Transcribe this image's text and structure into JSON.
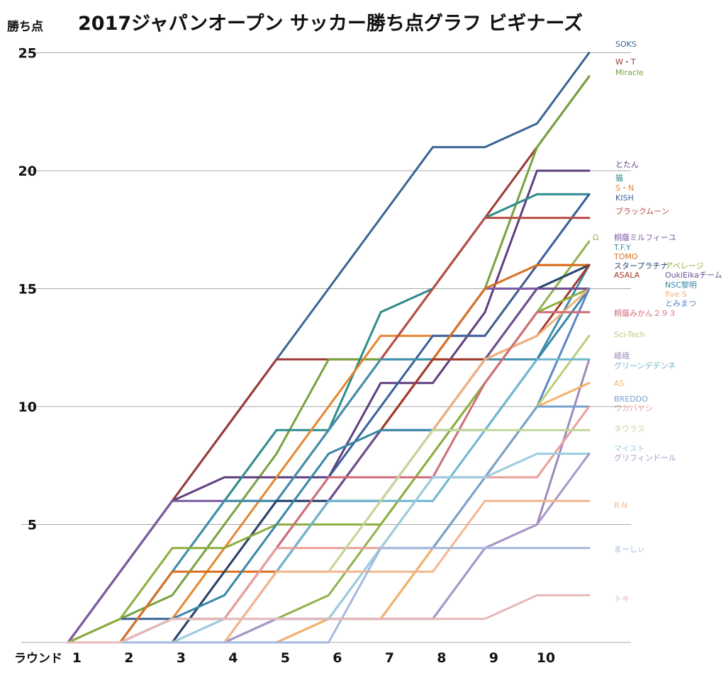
{
  "chart_data": {
    "type": "line",
    "title": "2017ジャパンオープン サッカー勝ち点グラフ ビギナーズ",
    "ylabel": "勝ち点",
    "xlabel": "ラウンド",
    "x": [
      1,
      2,
      3,
      4,
      5,
      6,
      7,
      8,
      9,
      10
    ],
    "ylim": [
      0,
      25
    ],
    "yticks": [
      5,
      10,
      15,
      20,
      25
    ],
    "grid": true,
    "legend": "right (labels at line ends)",
    "series": [
      {
        "name": "SOKS",
        "color": "#3b6494",
        "values": [
          3,
          6,
          9,
          12,
          15,
          18,
          21,
          21,
          22,
          25
        ]
      },
      {
        "name": "W・T",
        "color": "#9a3a34",
        "values": [
          3,
          6,
          9,
          12,
          12,
          12,
          15,
          18,
          21,
          24
        ]
      },
      {
        "name": "Miracle",
        "color": "#77a23e",
        "values": [
          1,
          2,
          5,
          8,
          12,
          12,
          12,
          15,
          21,
          24
        ]
      },
      {
        "name": "とたん",
        "color": "#5e3f7f",
        "values": [
          3,
          6,
          7,
          7,
          7,
          11,
          11,
          14,
          20,
          20
        ]
      },
      {
        "name": "猫",
        "color": "#2e8a8c",
        "values": [
          0,
          3,
          6,
          9,
          9,
          14,
          15,
          18,
          19,
          19
        ]
      },
      {
        "name": "S・N",
        "color": "#e4862f",
        "values": [
          0,
          1,
          4,
          7,
          10,
          13,
          13,
          13,
          16,
          16
        ]
      },
      {
        "name": "KISH",
        "color": "#3b5f99",
        "values": [
          1,
          1,
          1,
          4,
          7,
          10,
          13,
          13,
          16,
          19
        ]
      },
      {
        "name": "ブラックムーン",
        "color": "#b84c46",
        "values": [
          0,
          0,
          3,
          6,
          9,
          12,
          15,
          18,
          18,
          18
        ]
      },
      {
        "name": "Ω",
        "color": "#92b24d",
        "values": [
          0,
          0,
          0,
          1,
          2,
          5,
          8,
          11,
          14,
          17
        ]
      },
      {
        "name": "桐蔭ミルフィーユ",
        "color": "#7c5aa2",
        "values": [
          3,
          6,
          6,
          6,
          6,
          9,
          12,
          15,
          15,
          16
        ]
      },
      {
        "name": "T.F.Y",
        "color": "#3f8fab",
        "values": [
          0,
          3,
          6,
          6,
          9,
          12,
          12,
          12,
          12,
          16
        ]
      },
      {
        "name": "TOMO",
        "color": "#d96f1f",
        "values": [
          0,
          3,
          3,
          3,
          6,
          9,
          12,
          15,
          16,
          16
        ]
      },
      {
        "name": "スタープラチナ",
        "color": "#27466f",
        "values": [
          0,
          0,
          3,
          6,
          6,
          6,
          9,
          12,
          15,
          16
        ]
      },
      {
        "name": "ASALA",
        "color": "#a23a2a",
        "values": [
          0,
          0,
          0,
          3,
          6,
          9,
          12,
          12,
          13,
          16
        ]
      },
      {
        "name": "アベレージ",
        "color": "#8dae3e",
        "values": [
          1,
          4,
          4,
          5,
          5,
          5,
          8,
          11,
          14,
          15
        ]
      },
      {
        "name": "OukiEikaチーム",
        "color": "#6d4f92",
        "values": [
          0,
          0,
          0,
          3,
          6,
          9,
          9,
          12,
          15,
          15
        ]
      },
      {
        "name": "NSC黎明",
        "color": "#3787a8",
        "values": [
          0,
          1,
          2,
          5,
          8,
          9,
          9,
          9,
          12,
          15
        ]
      },
      {
        "name": "five S",
        "color": "#f4b27c",
        "values": [
          0,
          0,
          0,
          3,
          3,
          6,
          9,
          12,
          13,
          15
        ]
      },
      {
        "name": "とみまつ",
        "color": "#5b86c5",
        "values": [
          0,
          0,
          0,
          1,
          1,
          1,
          4,
          7,
          10,
          15
        ]
      },
      {
        "name": "桐蔭みかん２９３",
        "color": "#cf6e7a",
        "values": [
          0,
          1,
          1,
          4,
          7,
          7,
          7,
          11,
          14,
          14
        ]
      },
      {
        "name": "Sci-Tech",
        "color": "#b6d07a",
        "values": [
          0,
          0,
          0,
          0,
          1,
          4,
          7,
          7,
          10,
          13
        ]
      },
      {
        "name": "嵯峨",
        "color": "#9f89bd",
        "values": [
          0,
          0,
          0,
          0,
          1,
          1,
          1,
          4,
          5,
          12
        ]
      },
      {
        "name": "グリーンデデンネ",
        "color": "#6fb8cf",
        "values": [
          0,
          0,
          0,
          3,
          6,
          6,
          6,
          9,
          12,
          12
        ]
      },
      {
        "name": "AS",
        "color": "#f6b26b",
        "values": [
          0,
          0,
          0,
          0,
          1,
          1,
          4,
          7,
          10,
          11
        ]
      },
      {
        "name": "BREDDO",
        "color": "#7aa0cc",
        "values": [
          0,
          0,
          0,
          1,
          1,
          4,
          4,
          7,
          10,
          10
        ]
      },
      {
        "name": "ワカバヤシ",
        "color": "#e8a09a",
        "values": [
          0,
          0,
          1,
          4,
          4,
          4,
          7,
          7,
          7,
          10
        ]
      },
      {
        "name": "タウラス",
        "color": "#c2d79a",
        "values": [
          0,
          0,
          0,
          3,
          3,
          6,
          9,
          9,
          9,
          9
        ]
      },
      {
        "name": "マイスト",
        "color": "#9acde0",
        "values": [
          0,
          0,
          1,
          1,
          1,
          4,
          7,
          7,
          8,
          8
        ]
      },
      {
        "name": "グリフィンドール",
        "color": "#a897c7",
        "values": [
          0,
          0,
          0,
          1,
          1,
          1,
          1,
          4,
          5,
          8
        ]
      },
      {
        "name": "R.N",
        "color": "#f4b78f",
        "values": [
          0,
          0,
          0,
          3,
          3,
          3,
          3,
          6,
          6,
          6
        ]
      },
      {
        "name": "まーしぃ",
        "color": "#a6b8de",
        "values": [
          0,
          0,
          0,
          0,
          0,
          4,
          4,
          4,
          4,
          4
        ]
      },
      {
        "name": "トキ",
        "color": "#e6b9b9",
        "values": [
          0,
          1,
          1,
          1,
          1,
          1,
          1,
          1,
          2,
          2
        ]
      }
    ]
  }
}
